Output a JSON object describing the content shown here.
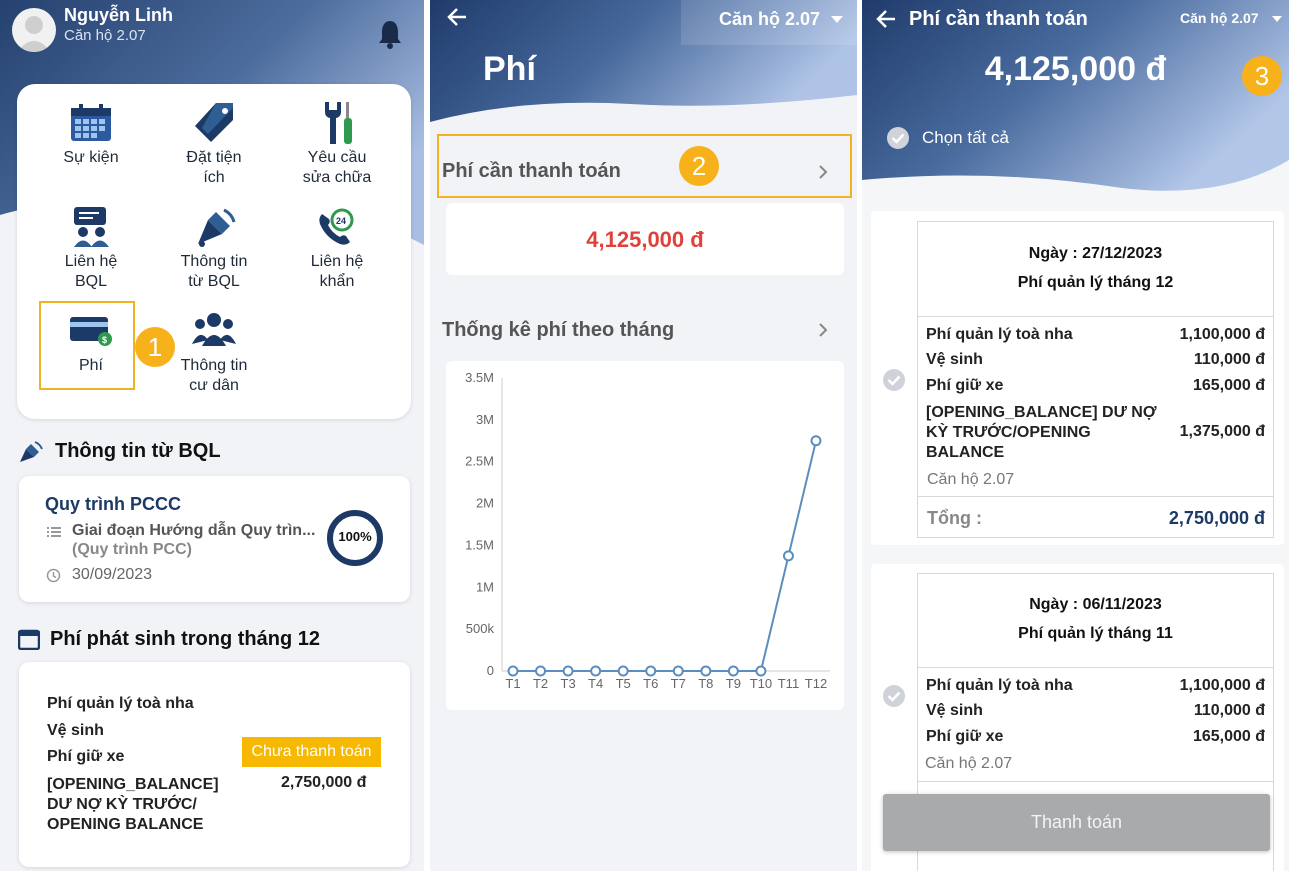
{
  "screen1": {
    "user_name": "Nguyễn Linh",
    "apartment": "Căn hộ 2.07",
    "menu": [
      {
        "label": "Sự kiện",
        "icon": "calendar-icon"
      },
      {
        "label": "Đặt tiện ích",
        "icon": "tag-icon"
      },
      {
        "label": "Yêu cầu sửa chữa",
        "icon": "tools-icon"
      },
      {
        "label": "Liên hệ BQL",
        "icon": "chat-people-icon"
      },
      {
        "label": "Thông tin từ BQL",
        "icon": "megaphone-icon"
      },
      {
        "label": "Liên hệ khẩn",
        "icon": "phone-24h-icon"
      },
      {
        "label": "Phí",
        "icon": "card-icon"
      },
      {
        "label": "Thông tin cư dân",
        "icon": "people-icon"
      }
    ],
    "menu_labels": {
      "l1": "Sự kiện",
      "l2a": "Đặt tiện",
      "l2b": "ích",
      "l3a": "Yêu cầu",
      "l3b": "sửa chữa",
      "l4a": "Liên hệ",
      "l4b": "BQL",
      "l5a": "Thông tin",
      "l5b": "từ BQL",
      "l6a": "Liên hệ",
      "l6b": "khẩn",
      "l7": "Phí",
      "l8a": "Thông tin",
      "l8b": "cư dân"
    },
    "step_badge": "1",
    "news_section_title": "Thông tin từ BQL",
    "news": {
      "title": "Quy trình PCCC",
      "stage": "Giai đoạn Hướng dẫn Quy trìn...",
      "process": "(Quy trình PCC)",
      "date": "30/09/2023",
      "progress_label": "100%",
      "progress": 1.0
    },
    "fees_section_title": "Phí phát sinh trong tháng 12",
    "fees": {
      "items": [
        "Phí quản lý toà nha",
        "Vệ sinh",
        "Phí giữ xe"
      ],
      "opening_a": "[OPENING_BALANCE]",
      "opening_b": "DƯ NỢ KỲ TRƯỚC/",
      "opening_c": "OPENING BALANCE",
      "status": "Chưa thanh toán",
      "total": "2,750,000 đ"
    }
  },
  "screen2": {
    "apartment_select": "Căn hộ 2.07",
    "title": "Phí",
    "due_label": "Phí cần thanh toán",
    "step_badge": "2",
    "due_amount": "4,125,000 đ",
    "stats_label": "Thống kê phí theo tháng"
  },
  "screen3": {
    "title": "Phí cần thanh toán",
    "apartment_select": "Căn hộ 2.07",
    "total": "4,125,000 đ",
    "step_badge": "3",
    "select_all": "Chọn tất cả",
    "bills": [
      {
        "date": "Ngày : 27/12/2023",
        "name": "Phí quản lý tháng 12",
        "lines": [
          {
            "label": "Phí quản lý toà nha",
            "value": "1,100,000 đ"
          },
          {
            "label": "Vệ sinh",
            "value": "110,000 đ"
          },
          {
            "label": "Phí giữ xe",
            "value": "165,000 đ"
          }
        ],
        "opening_a": "[OPENING_BALANCE] DƯ NỢ",
        "opening_b": "KỲ TRƯỚC/OPENING",
        "opening_c": "BALANCE",
        "opening_value": "1,375,000 đ",
        "apartment": "Căn hộ 2.07",
        "total_label": "Tổng :",
        "total": "2,750,000 đ"
      },
      {
        "date": "Ngày : 06/11/2023",
        "name": "Phí quản lý tháng 11",
        "lines": [
          {
            "label": "Phí quản lý toà nha",
            "value": "1,100,000 đ"
          },
          {
            "label": "Vệ sinh",
            "value": "110,000 đ"
          },
          {
            "label": "Phí giữ xe",
            "value": "165,000 đ"
          }
        ],
        "apartment": "Căn hộ 2.07"
      }
    ],
    "pay_button": "Thanh toán"
  },
  "chart_data": {
    "type": "line",
    "categories": [
      "T1",
      "T2",
      "T3",
      "T4",
      "T5",
      "T6",
      "T7",
      "T8",
      "T9",
      "T10",
      "T11",
      "T12"
    ],
    "values": [
      0,
      0,
      0,
      0,
      0,
      0,
      0,
      0,
      0,
      0,
      1375000,
      2750000
    ],
    "ylim": [
      0,
      3500000
    ],
    "yticks": [
      0,
      500000,
      1000000,
      1500000,
      2000000,
      2500000,
      3000000,
      3500000
    ],
    "ytick_labels": [
      "0",
      "500k",
      "1M",
      "1.5M",
      "2M",
      "2.5M",
      "3M",
      "3.5M"
    ],
    "grid": false,
    "colors": {
      "line": "#5b8dbf",
      "marker_fill": "#ffffff"
    }
  },
  "colors": {
    "header_dark": "#1d3966",
    "header_light": "#a6bce3",
    "accent": "#f6b11b",
    "due_red": "#e0413a",
    "navy_text": "#1d3966"
  }
}
